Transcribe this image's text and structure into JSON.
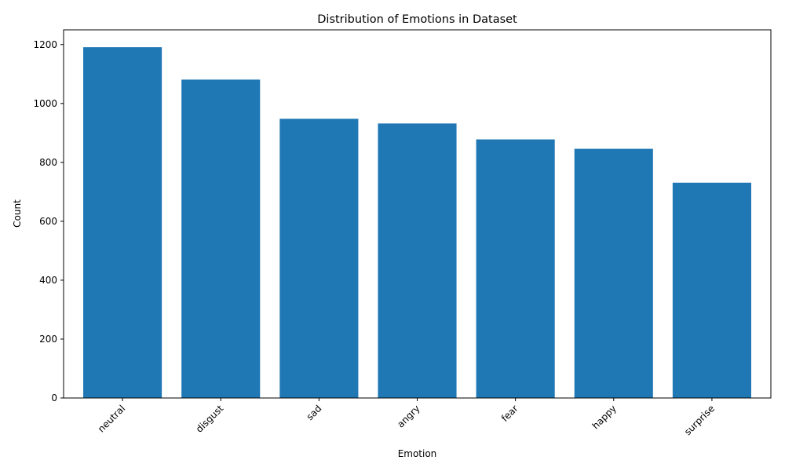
{
  "chart_data": {
    "type": "bar",
    "title": "Distribution of Emotions in Dataset",
    "xlabel": "Emotion",
    "ylabel": "Count",
    "categories": [
      "neutral",
      "disgust",
      "sad",
      "angry",
      "fear",
      "happy",
      "surprise"
    ],
    "values": [
      1191,
      1081,
      948,
      932,
      878,
      846,
      731
    ],
    "ylim": [
      0,
      1250
    ],
    "yticks": [
      0,
      200,
      400,
      600,
      800,
      1000,
      1200
    ],
    "bar_color": "#1f77b4",
    "grid": false,
    "legend": "none"
  }
}
